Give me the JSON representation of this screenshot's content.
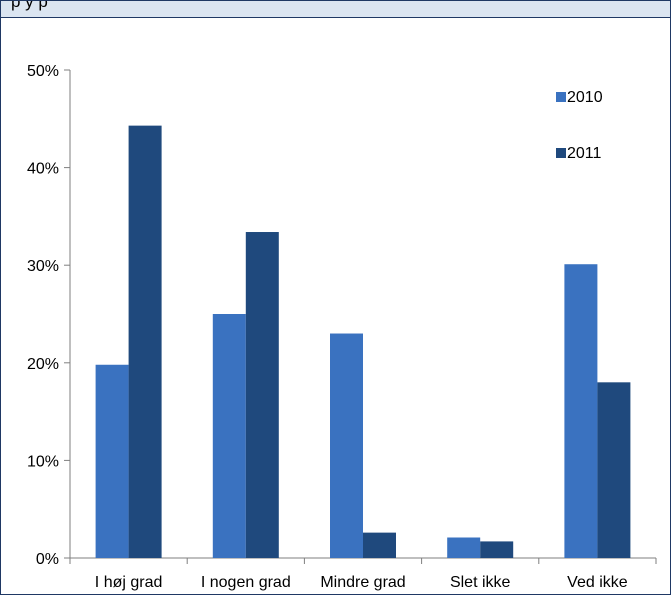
{
  "header": {
    "text": "p          y              p"
  },
  "chart_data": {
    "type": "bar",
    "title": "",
    "xlabel": "",
    "ylabel": "",
    "categories": [
      "I høj grad",
      "I nogen grad",
      "Mindre grad",
      "Slet ikke",
      "Ved ikke"
    ],
    "series": [
      {
        "name": "2010",
        "color": "#3a72c0",
        "values": [
          19.8,
          25.0,
          23.0,
          2.1,
          30.1
        ]
      },
      {
        "name": "2011",
        "color": "#1f497d",
        "values": [
          44.3,
          33.4,
          2.6,
          1.7,
          18.0
        ]
      }
    ],
    "ylim": [
      0,
      50
    ],
    "yticks": [
      0,
      10,
      20,
      30,
      40,
      50
    ],
    "ytick_labels": [
      "0%",
      "10%",
      "20%",
      "30%",
      "40%",
      "50%"
    ],
    "grid": false,
    "legend_position": "top-right"
  }
}
